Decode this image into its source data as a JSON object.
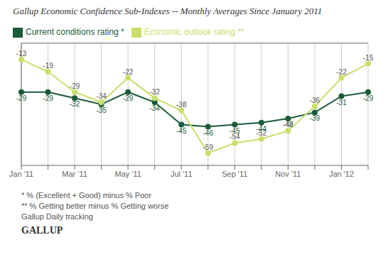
{
  "chart_data": {
    "type": "line",
    "title": "Gallup Economic Confidence Sub-Indexes -- Monthly Averages Since January 2011",
    "categories": [
      "Jan '11",
      null,
      "Mar '11",
      null,
      "May '11",
      null,
      "Jul '11",
      null,
      "Sep '11",
      null,
      "Nov '11",
      null,
      "Jan '12",
      null
    ],
    "series": [
      {
        "name": "Current conditions rating *",
        "color": "#1a5c38",
        "values": [
          -29,
          -29,
          -32,
          -35,
          -29,
          -34,
          -45,
          -46,
          -45,
          -44,
          -42,
          -39,
          -31,
          -29
        ]
      },
      {
        "name": "Economic outlook rating **",
        "color": "#c8e06b",
        "values": [
          -13,
          -19,
          -29,
          -34,
          -22,
          -32,
          -38,
          -59,
          -54,
          -52,
          -48,
          -36,
          -22,
          -15
        ]
      }
    ],
    "ylim": [
      -65,
      -5
    ],
    "grid": true,
    "legend": "upper left",
    "data_labels": true,
    "tick_labels": "x",
    "marker": "circle",
    "annotations": [
      "* % (Excellent + Good) minus % Poor",
      "** % Getting better minus % Getting worse",
      "Gallup Daily tracking",
      "GALLUP"
    ]
  }
}
